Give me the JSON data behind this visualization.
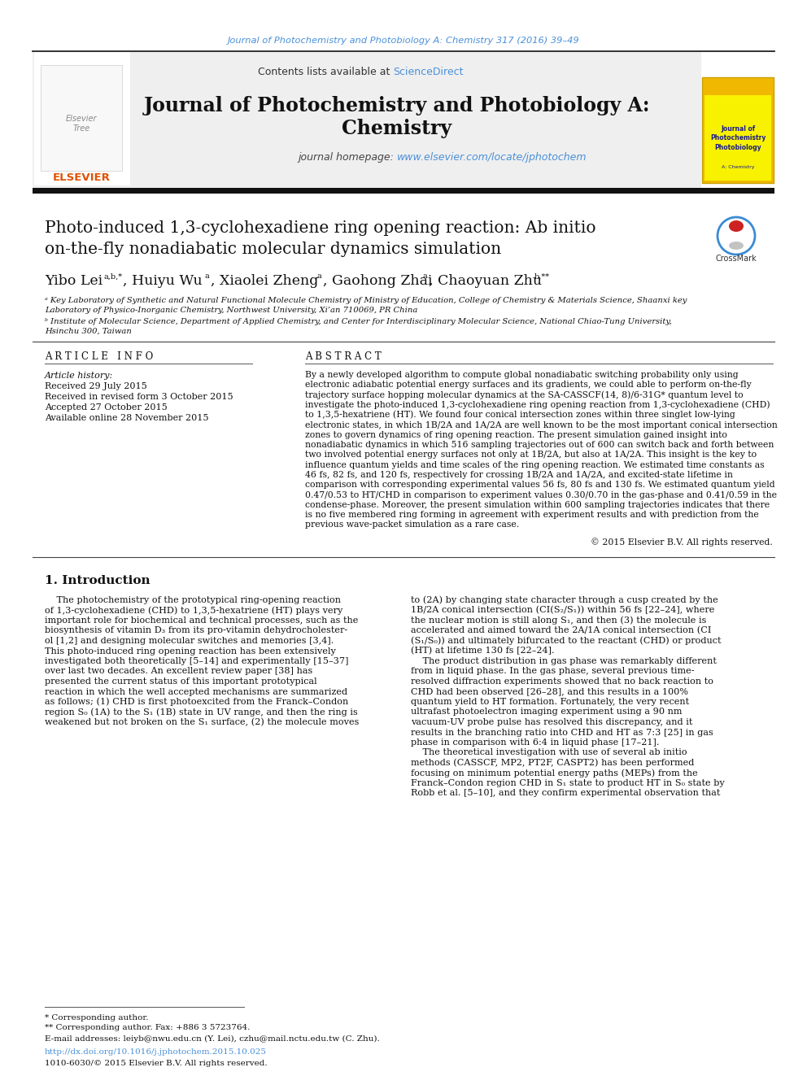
{
  "page_background": "#ffffff",
  "top_journal_text": "Journal of Photochemistry and Photobiology A: Chemistry 317 (2016) 39–49",
  "top_journal_color": "#4a90d9",
  "header_bg": "#f0f0f0",
  "header_contents_text": "Contents lists available at ",
  "header_sciencedirect": "ScienceDirect",
  "header_sciencedirect_color": "#4a90d9",
  "journal_title_line1": "Journal of Photochemistry and Photobiology A:",
  "journal_title_line2": "Chemistry",
  "journal_homepage_text": "journal homepage: ",
  "journal_homepage_url": "www.elsevier.com/locate/jphotochem",
  "journal_homepage_color": "#4a90d9",
  "section_article_info": "A R T I C L E   I N F O",
  "section_abstract": "A B S T R A C T",
  "article_history_label": "Article history:",
  "received": "Received 29 July 2015",
  "received_revised": "Received in revised form 3 October 2015",
  "accepted": "Accepted 27 October 2015",
  "available": "Available online 28 November 2015",
  "copyright_text": "© 2015 Elsevier B.V. All rights reserved.",
  "section1_title": "1. Introduction",
  "footnote_star": "* Corresponding author.",
  "footnote_dstar": "** Corresponding author. Fax: +886 3 5723764.",
  "footnote_email": "E-mail addresses: leiyb@nwu.edu.cn (Y. Lei), czhu@mail.nctu.edu.tw (C. Zhu).",
  "doi_text": "http://dx.doi.org/10.1016/j.jphotochem.2015.10.025",
  "issn_text": "1010-6030/© 2015 Elsevier B.V. All rights reserved.",
  "text_color": "#000000",
  "link_color": "#4a90d9",
  "abstract_lines": [
    "By a newly developed algorithm to compute global nonadiabatic switching probability only using",
    "electronic adiabatic potential energy surfaces and its gradients, we could able to perform on-the-fly",
    "trajectory surface hopping molecular dynamics at the SA-CASSCF(14, 8)/6-31G* quantum level to",
    "investigate the photo-induced 1,3-cyclohexadiene ring opening reaction from 1,3-cyclohexadiene (CHD)",
    "to 1,3,5-hexatriene (HT). We found four conical intersection zones within three singlet low-lying",
    "electronic states, in which 1B/2A and 1A/2A are well known to be the most important conical intersection",
    "zones to govern dynamics of ring opening reaction. The present simulation gained insight into",
    "nonadiabatic dynamics in which 516 sampling trajectories out of 600 can switch back and forth between",
    "two involved potential energy surfaces not only at 1B/2A, but also at 1A/2A. This insight is the key to",
    "influence quantum yields and time scales of the ring opening reaction. We estimated time constants as",
    "46 fs, 82 fs, and 120 fs, respectively for crossing 1B/2A and 1A/2A, and excited-state lifetime in",
    "comparison with corresponding experimental values 56 fs, 80 fs and 130 fs. We estimated quantum yield",
    "0.47/0.53 to HT/CHD in comparison to experiment values 0.30/0.70 in the gas-phase and 0.41/0.59 in the",
    "condense-phase. Moreover, the present simulation within 600 sampling trajectories indicates that there",
    "is no five membered ring forming in agreement with experiment results and with prediction from the",
    "previous wave-packet simulation as a rare case."
  ],
  "intro_col1_lines": [
    "    The photochemistry of the prototypical ring-opening reaction",
    "of 1,3-cyclohexadiene (CHD) to 1,3,5-hexatriene (HT) plays very",
    "important role for biochemical and technical processes, such as the",
    "biosynthesis of vitamin D₃ from its pro-vitamin dehydrocholester-",
    "ol [1,2] and designing molecular switches and memories [3,4].",
    "This photo-induced ring opening reaction has been extensively",
    "investigated both theoretically [5–14] and experimentally [15–37]",
    "over last two decades. An excellent review paper [38] has",
    "presented the current status of this important prototypical",
    "reaction in which the well accepted mechanisms are summarized",
    "as follows; (1) CHD is first photoexcited from the Franck–Condon",
    "region S₀ (1A) to the S₁ (1B) state in UV range, and then the ring is",
    "weakened but not broken on the S₁ surface, (2) the molecule moves"
  ],
  "intro_col2_lines": [
    "to (2A) by changing state character through a cusp created by the",
    "1B/2A conical intersection (CI(S₂/S₁)) within 56 fs [22–24], where",
    "the nuclear motion is still along S₁, and then (3) the molecule is",
    "accelerated and aimed toward the 2A/1A conical intersection (CI",
    "(S₁/S₀)) and ultimately bifurcated to the reactant (CHD) or product",
    "(HT) at lifetime 130 fs [22–24].",
    "    The product distribution in gas phase was remarkably different",
    "from in liquid phase. In the gas phase, several previous time-",
    "resolved diffraction experiments showed that no back reaction to",
    "CHD had been observed [26–28], and this results in a 100%",
    "quantum yield to HT formation. Fortunately, the very recent",
    "ultrafast photoelectron imaging experiment using a 90 nm",
    "vacuum-UV probe pulse has resolved this discrepancy, and it",
    "results in the branching ratio into CHD and HT as 7:3 [25] in gas",
    "phase in comparison with 6:4 in liquid phase [17–21].",
    "    The theoretical investigation with use of several ab initio",
    "methods (CASSCF, MP2, PT2F, CASPT2) has been performed",
    "focusing on minimum potential energy paths (MEPs) from the",
    "Franck–Condon region CHD in S₁ state to product HT in S₀ state by",
    "Robb et al. [5–10], and they confirm experimental observation that"
  ]
}
